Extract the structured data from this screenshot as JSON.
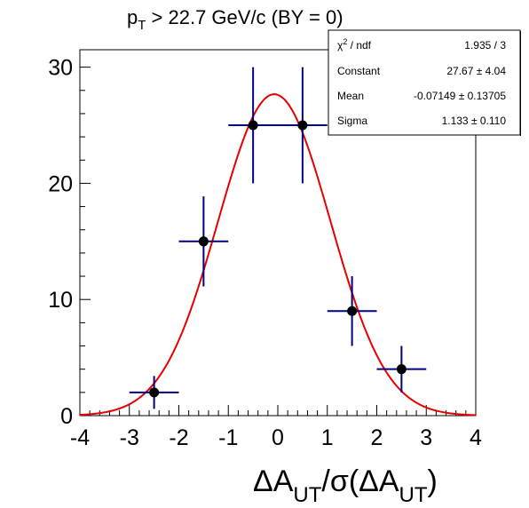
{
  "chart_data": {
    "type": "scatter",
    "title": {
      "main": "p",
      "sub": "T",
      "rest": " > 22.7 GeV/c (BY = 0)"
    },
    "xlabel": {
      "p1": "ΔA",
      "s1": "UT",
      "p2": "/σ(ΔA",
      "s2": "UT",
      "p3": ")"
    },
    "ylabel": "",
    "xlim": [
      -4,
      4
    ],
    "ylim": [
      0,
      31.5
    ],
    "xticks": [
      -4,
      -3,
      -2,
      -1,
      0,
      1,
      2,
      3,
      4
    ],
    "yticks": [
      0,
      10,
      20,
      30
    ],
    "grid": false,
    "series": [
      {
        "points": [
          {
            "x": -2.5,
            "y": 2,
            "xerr": 0.5,
            "yerr": 1.414
          },
          {
            "x": -1.5,
            "y": 15,
            "xerr": 0.5,
            "yerr": 3.873
          },
          {
            "x": -0.5,
            "y": 25,
            "xerr": 0.5,
            "yerr": 5.0
          },
          {
            "x": 0.5,
            "y": 25,
            "xerr": 0.5,
            "yerr": 5.0
          },
          {
            "x": 1.5,
            "y": 9,
            "xerr": 0.5,
            "yerr": 3.0
          },
          {
            "x": 2.5,
            "y": 4,
            "xerr": 0.5,
            "yerr": 2.0
          }
        ]
      }
    ],
    "fit": {
      "function": "gaus",
      "constant": 27.67,
      "mean": -0.07149,
      "sigma": 1.133
    },
    "colors": {
      "markers": "#000000",
      "errorbars": "#000080",
      "fit": "#e60000"
    },
    "stats": {
      "rows": [
        {
          "label": "χ² / ndf",
          "value": "1.935 / 3"
        },
        {
          "label": "Constant",
          "value": "27.67 ± 4.04"
        },
        {
          "label": "Mean",
          "value": "-0.07149 ± 0.13705"
        },
        {
          "label": "Sigma",
          "value": "1.133 ± 0.110"
        }
      ]
    }
  }
}
